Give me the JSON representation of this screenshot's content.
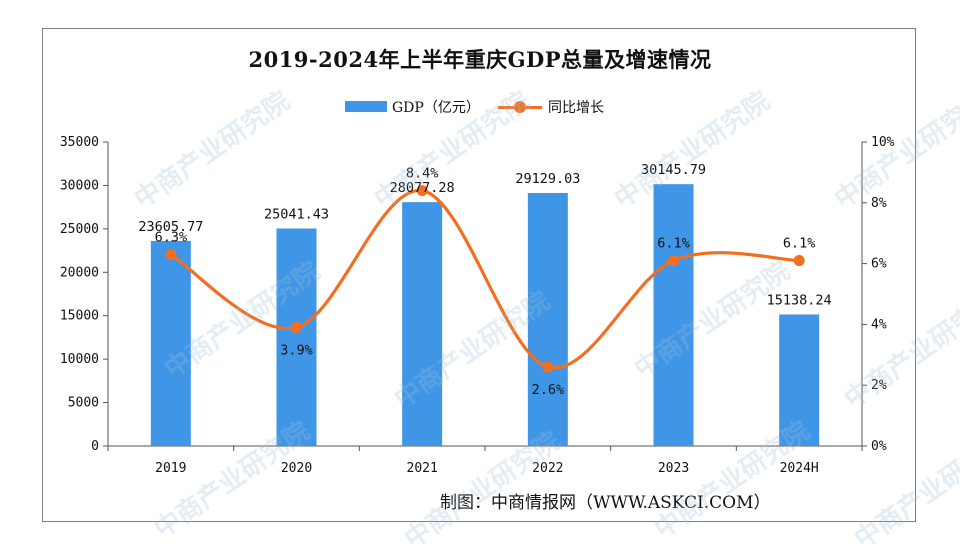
{
  "chart_data": {
    "type": "bar",
    "title": "2019-2024年上半年重庆GDP总量及增速情况",
    "categories": [
      "2019",
      "2020",
      "2021",
      "2022",
      "2023",
      "2024H"
    ],
    "series": [
      {
        "name": "GDP（亿元）",
        "type": "bar",
        "axis": "left",
        "color": "#3f96e6",
        "values": [
          23605.77,
          25041.43,
          28077.28,
          29129.03,
          30145.79,
          15138.24
        ],
        "labels": [
          "23605.77",
          "25041.43",
          "28077.28",
          "29129.03",
          "30145.79",
          "15138.24"
        ]
      },
      {
        "name": "同比增长",
        "type": "line",
        "smooth": true,
        "axis": "right",
        "color": "#f26f22",
        "values": [
          6.3,
          3.9,
          8.4,
          2.6,
          6.1,
          6.1
        ],
        "labels": [
          "6.3%",
          "3.9%",
          "8.4%",
          "2.6%",
          "6.1%",
          "6.1%"
        ]
      }
    ],
    "y_left": {
      "ylim": [
        0,
        35000
      ],
      "ticks": [
        "0",
        "5000",
        "10000",
        "15000",
        "20000",
        "25000",
        "30000",
        "35000"
      ]
    },
    "y_right": {
      "ylim": [
        0,
        10
      ],
      "ticks": [
        "0%",
        "2%",
        "4%",
        "6%",
        "8%",
        "10%"
      ]
    },
    "legend_position": "top-center",
    "grid": false
  },
  "credit": "制图：中商情报网（WWW.ASKCI.COM）",
  "watermark": "中商产业研究院"
}
